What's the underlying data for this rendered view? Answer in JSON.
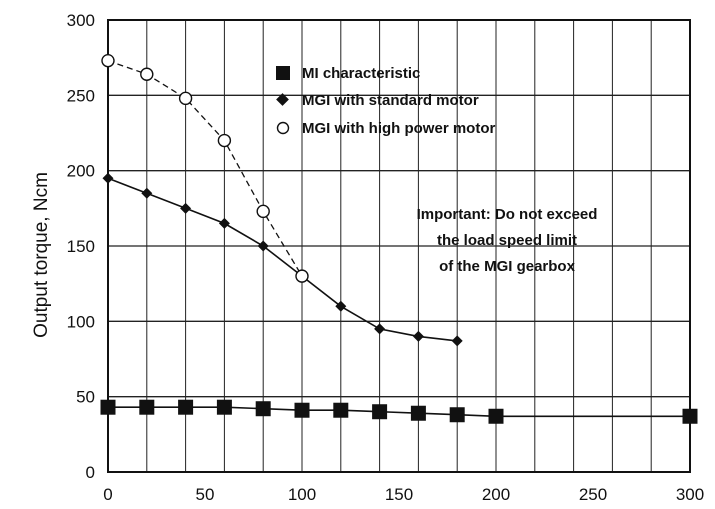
{
  "chart_data": {
    "type": "line",
    "title": "",
    "xlabel": "",
    "ylabel": "Output torque, Ncm",
    "xlim": [
      0,
      300
    ],
    "ylim": [
      0,
      300
    ],
    "x_ticks": [
      0,
      50,
      100,
      150,
      200,
      250,
      300
    ],
    "y_ticks": [
      0,
      50,
      100,
      150,
      200,
      250,
      300
    ],
    "grid": true,
    "legend_position": "top-center",
    "series": [
      {
        "name": "MI characteristic",
        "marker": "square",
        "line": "solid",
        "x": [
          0,
          20,
          40,
          60,
          80,
          100,
          120,
          140,
          160,
          180,
          200,
          300
        ],
        "y": [
          43,
          43,
          43,
          43,
          42,
          41,
          41,
          40,
          39,
          38,
          37,
          37
        ]
      },
      {
        "name": "MGI with standard motor",
        "marker": "diamond",
        "line": "solid",
        "x": [
          0,
          20,
          40,
          60,
          80,
          100,
          120,
          140,
          160,
          180
        ],
        "y": [
          195,
          185,
          175,
          165,
          150,
          130,
          110,
          95,
          90,
          87
        ]
      },
      {
        "name": "MGI with high power motor",
        "marker": "open-circle",
        "line": "dashed",
        "x": [
          0,
          20,
          40,
          60,
          80,
          100
        ],
        "y": [
          273,
          264,
          248,
          220,
          173,
          130
        ]
      }
    ],
    "annotations": [
      "Important: Do not exceed",
      "the load speed limit",
      "of the MGI gearbox"
    ]
  }
}
